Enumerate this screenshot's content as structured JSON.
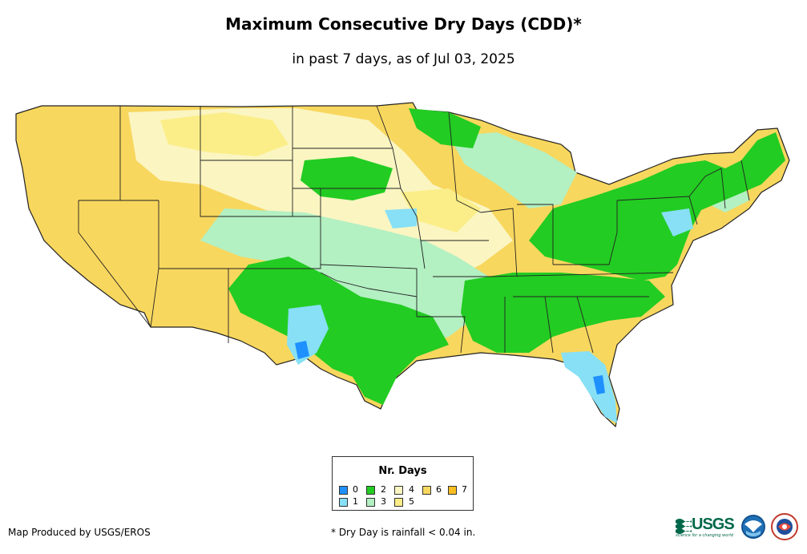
{
  "header": {
    "title": "Maximum Consecutive Dry Days (CDD)*",
    "subtitle": "in past 7 days, as of Jul 03, 2025"
  },
  "legend": {
    "title": "Nr. Days",
    "items": [
      {
        "label": "0",
        "color": "#1e90ff"
      },
      {
        "label": "1",
        "color": "#87e0f5"
      },
      {
        "label": "2",
        "color": "#22cc22"
      },
      {
        "label": "3",
        "color": "#b3f0c2"
      },
      {
        "label": "4",
        "color": "#fbf5c2"
      },
      {
        "label": "5",
        "color": "#fbee88"
      },
      {
        "label": "6",
        "color": "#f8d75e"
      },
      {
        "label": "7",
        "color": "#f8be22"
      }
    ]
  },
  "footer": {
    "credit": "Map Produced by USGS/EROS",
    "note": "* Dry Day is rainfall < 0.04 in.",
    "usgs_logo_text": "USGS",
    "usgs_tagline": "science for a changing world"
  },
  "map": {
    "region": "contiguous-united-states",
    "regions_by_class": {
      "west-coast-and-great-basin": "6",
      "northern-rockies": "6",
      "northern-plains": "4",
      "central-plains": "3",
      "ohio-valley-and-appalachians": "2",
      "northeast": "2",
      "southeast": "2",
      "florida-and-gulf-coast": "1",
      "west-texas": "0"
    },
    "icon_names": [
      "usgs-logo",
      "noaa-logo",
      "nws-logo"
    ]
  }
}
